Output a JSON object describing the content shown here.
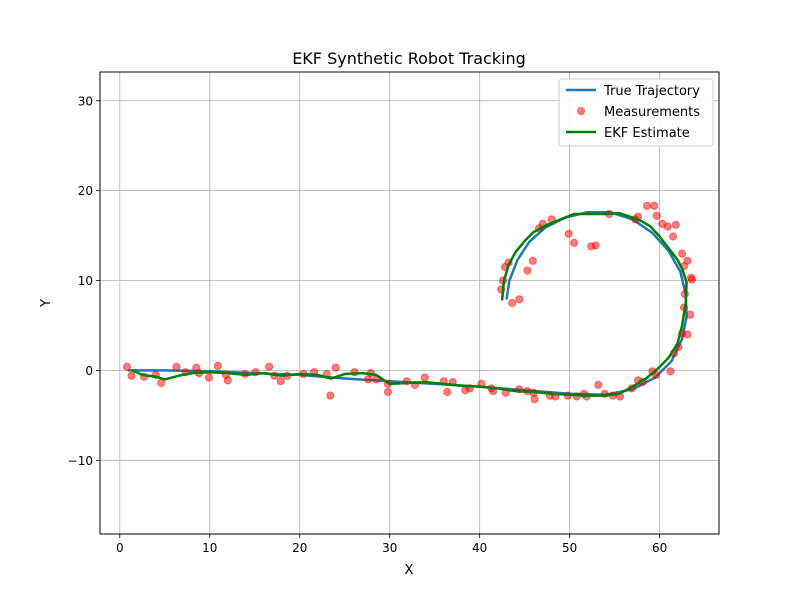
{
  "chart_data": {
    "type": "line",
    "title": "EKF Synthetic Robot Tracking",
    "xlabel": "X",
    "ylabel": "Y",
    "xlim": [
      -2.2,
      66.6
    ],
    "ylim": [
      -18.2,
      33.2
    ],
    "xticks": [
      0,
      10,
      20,
      30,
      40,
      50,
      60
    ],
    "yticks": [
      -10,
      0,
      10,
      20,
      30
    ],
    "xtick_labels": [
      "0",
      "10",
      "20",
      "30",
      "40",
      "50",
      "60"
    ],
    "ytick_labels": [
      "−10",
      "0",
      "10",
      "20",
      "30"
    ],
    "grid": true,
    "legend_position": "top-right",
    "series": [
      {
        "name": "True Trajectory",
        "kind": "line",
        "color": "#1f77b4",
        "x": [
          1.0,
          5.0,
          10.0,
          15.0,
          20.0,
          25.0,
          30.0,
          35.0,
          40.0,
          45.0,
          50.0,
          54.0,
          57.0,
          59.5,
          61.3,
          62.5,
          63.0,
          62.9,
          62.3,
          61.0,
          59.2,
          57.0,
          54.5,
          52.0,
          49.5,
          47.3,
          45.5,
          44.2,
          43.3,
          43.0
        ],
        "y": [
          0.0,
          0.0,
          -0.1,
          -0.3,
          -0.5,
          -0.9,
          -1.2,
          -1.5,
          -1.8,
          -2.2,
          -2.6,
          -2.7,
          -2.1,
          -0.8,
          1.0,
          3.5,
          6.0,
          8.5,
          11.0,
          13.3,
          15.3,
          16.8,
          17.6,
          17.6,
          17.0,
          15.9,
          14.3,
          12.3,
          10.0,
          8.0
        ]
      },
      {
        "name": "Measurements",
        "kind": "scatter",
        "color": "#ff0000",
        "x": [
          0.8,
          1.3,
          2.7,
          4.0,
          4.6,
          6.3,
          7.3,
          8.5,
          8.8,
          9.9,
          10.9,
          11.8,
          12.0,
          13.9,
          15.1,
          16.6,
          17.2,
          17.9,
          18.6,
          20.4,
          21.6,
          23.0,
          23.4,
          24.0,
          26.1,
          27.6,
          27.9,
          28.5,
          29.8,
          29.8,
          31.9,
          32.8,
          33.9,
          36.0,
          36.4,
          37.0,
          38.4,
          38.9,
          40.2,
          41.3,
          41.5,
          42.9,
          44.4,
          45.3,
          46.0,
          46.1,
          47.8,
          48.4,
          49.8,
          50.8,
          51.6,
          51.9,
          53.2,
          53.9,
          54.8,
          55.6,
          56.9,
          57.6,
          58.1,
          59.2,
          59.6,
          61.2,
          61.6,
          62.1,
          62.5,
          62.7,
          62.8,
          63.1,
          63.4,
          63.6,
          63.5,
          63.1,
          62.7,
          62.5,
          61.5,
          61.8,
          60.9,
          60.3,
          59.7,
          59.4,
          58.6,
          57.6,
          57.3,
          54.4,
          52.9,
          52.4,
          50.5,
          49.9,
          48.0,
          47.0,
          46.6,
          45.9,
          45.3,
          44.4,
          43.6,
          43.2,
          42.8,
          42.6,
          42.4
        ],
        "y": [
          0.4,
          -0.6,
          -0.7,
          -0.5,
          -1.4,
          0.4,
          -0.2,
          0.3,
          -0.3,
          -0.8,
          0.5,
          -0.5,
          -1.1,
          -0.4,
          -0.2,
          0.4,
          -0.6,
          -1.2,
          -0.6,
          -0.4,
          -0.2,
          -0.4,
          -2.8,
          0.3,
          -0.2,
          -1.0,
          -0.3,
          -1.0,
          -1.5,
          -2.4,
          -1.2,
          -1.6,
          -0.8,
          -1.2,
          -2.4,
          -1.3,
          -2.2,
          -2.0,
          -1.5,
          -2.0,
          -2.3,
          -2.5,
          -2.1,
          -2.3,
          -2.5,
          -3.2,
          -2.8,
          -2.9,
          -2.8,
          -2.9,
          -2.6,
          -2.9,
          -1.6,
          -2.6,
          -2.8,
          -2.9,
          -2.0,
          -1.1,
          -1.3,
          -0.1,
          -0.5,
          -0.1,
          1.9,
          2.6,
          4.1,
          7.0,
          8.5,
          4.0,
          6.2,
          10.1,
          10.3,
          12.2,
          11.6,
          13.0,
          14.9,
          16.2,
          16.0,
          16.3,
          17.2,
          18.3,
          18.3,
          17.1,
          16.8,
          17.4,
          13.9,
          13.8,
          14.2,
          15.2,
          16.8,
          16.3,
          15.8,
          12.2,
          11.1,
          7.9,
          7.5,
          12.0,
          11.5,
          10.0,
          9.0
        ],
        "opacity": 0.5
      },
      {
        "name": "EKF Estimate",
        "kind": "line",
        "color": "#008000",
        "x": [
          1.4,
          2.5,
          4.0,
          5.0,
          6.5,
          8.0,
          10.0,
          12.0,
          14.0,
          16.0,
          18.0,
          20.0,
          22.0,
          23.5,
          25.0,
          27.0,
          28.5,
          30.0,
          32.0,
          34.0,
          36.0,
          38.0,
          40.0,
          42.0,
          44.0,
          46.0,
          48.0,
          50.0,
          52.0,
          54.0,
          55.5,
          57.0,
          58.5,
          59.8,
          61.0,
          62.0,
          62.5,
          62.9,
          63.0,
          62.5,
          62.0,
          61.0,
          60.0,
          59.0,
          58.0,
          57.0,
          55.5,
          54.0,
          52.5,
          50.5,
          49.0,
          47.5,
          46.0,
          45.0,
          44.0,
          43.2,
          42.7,
          42.5
        ],
        "y": [
          0.0,
          -0.5,
          -0.7,
          -1.0,
          -0.6,
          -0.3,
          -0.2,
          -0.3,
          -0.5,
          -0.3,
          -0.6,
          -0.4,
          -0.5,
          -0.9,
          -0.4,
          -0.3,
          -0.5,
          -1.5,
          -1.4,
          -1.3,
          -1.5,
          -1.7,
          -1.8,
          -2.0,
          -2.3,
          -2.4,
          -2.6,
          -2.7,
          -2.8,
          -2.8,
          -2.6,
          -1.8,
          -0.9,
          0.2,
          1.4,
          3.0,
          5.0,
          7.5,
          9.8,
          11.3,
          12.3,
          13.6,
          14.9,
          16.0,
          16.6,
          17.0,
          17.5,
          17.4,
          17.4,
          17.4,
          16.8,
          16.2,
          15.4,
          14.4,
          13.2,
          11.7,
          10.0,
          7.9
        ]
      }
    ]
  }
}
